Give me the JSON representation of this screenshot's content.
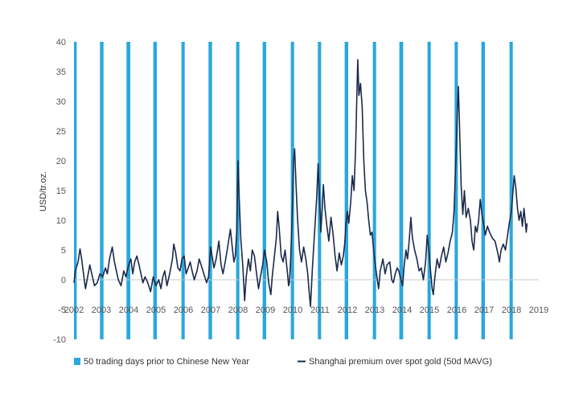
{
  "chart_data": {
    "type": "line",
    "title": "",
    "xlabel": "",
    "ylabel": "USD/tr.oz.",
    "ylim": [
      -10,
      40
    ],
    "xlim": [
      2002,
      2019
    ],
    "yticks": [
      "40",
      "35",
      "30",
      "25",
      "20",
      "15",
      "10",
      "5",
      "0",
      "-5",
      "-10"
    ],
    "xticks": [
      "2002",
      "2003",
      "2004",
      "2005",
      "2006",
      "2007",
      "2008",
      "2009",
      "2010",
      "2011",
      "2012",
      "2013",
      "2014",
      "2015",
      "2016",
      "2017",
      "2018",
      "2019"
    ],
    "grid": false,
    "legend_position": "bottom",
    "colors": {
      "bands": "#2aa7de",
      "line": "#1b2a4a"
    },
    "series": [
      {
        "name": "50 trading days prior to Chinese New Year",
        "kind": "bands",
        "bands": [
          [
            2002.0,
            2002.1
          ],
          [
            2002.95,
            2003.08
          ],
          [
            2003.92,
            2004.06
          ],
          [
            2004.9,
            2005.03
          ],
          [
            2005.93,
            2006.05
          ],
          [
            2006.92,
            2007.05
          ],
          [
            2007.93,
            2008.05
          ],
          [
            2008.9,
            2009.03
          ],
          [
            2009.93,
            2010.05
          ],
          [
            2010.92,
            2011.04
          ],
          [
            2011.9,
            2012.03
          ],
          [
            2012.93,
            2013.05
          ],
          [
            2013.9,
            2014.04
          ],
          [
            2014.93,
            2015.05
          ],
          [
            2015.92,
            2016.04
          ],
          [
            2016.9,
            2017.03
          ],
          [
            2017.93,
            2018.05
          ]
        ]
      },
      {
        "name": "Shanghai premium over spot gold (50d MAVG)",
        "kind": "line",
        "points": [
          [
            2002.0,
            -0.5
          ],
          [
            2002.05,
            1.5
          ],
          [
            2002.15,
            3.0
          ],
          [
            2002.22,
            5.2
          ],
          [
            2002.28,
            3.5
          ],
          [
            2002.35,
            1.0
          ],
          [
            2002.42,
            -1.5
          ],
          [
            2002.5,
            0.5
          ],
          [
            2002.58,
            2.5
          ],
          [
            2002.65,
            1.0
          ],
          [
            2002.75,
            -1.0
          ],
          [
            2002.85,
            -0.5
          ],
          [
            2002.95,
            1.0
          ],
          [
            2003.05,
            0.5
          ],
          [
            2003.15,
            2.0
          ],
          [
            2003.22,
            1.0
          ],
          [
            2003.3,
            3.5
          ],
          [
            2003.4,
            5.5
          ],
          [
            2003.48,
            3.0
          ],
          [
            2003.55,
            1.5
          ],
          [
            2003.62,
            0.0
          ],
          [
            2003.72,
            -1.0
          ],
          [
            2003.82,
            1.5
          ],
          [
            2003.9,
            0.5
          ],
          [
            2004.0,
            2.5
          ],
          [
            2004.08,
            3.5
          ],
          [
            2004.15,
            1.0
          ],
          [
            2004.22,
            3.0
          ],
          [
            2004.3,
            4.0
          ],
          [
            2004.38,
            2.5
          ],
          [
            2004.45,
            1.0
          ],
          [
            2004.52,
            -0.5
          ],
          [
            2004.6,
            0.5
          ],
          [
            2004.7,
            -0.5
          ],
          [
            2004.8,
            -2.0
          ],
          [
            2004.9,
            0.5
          ],
          [
            2005.0,
            -1.0
          ],
          [
            2005.1,
            0.0
          ],
          [
            2005.18,
            -1.5
          ],
          [
            2005.25,
            0.5
          ],
          [
            2005.32,
            1.5
          ],
          [
            2005.4,
            -1.0
          ],
          [
            2005.5,
            1.0
          ],
          [
            2005.6,
            3.5
          ],
          [
            2005.65,
            6.0
          ],
          [
            2005.72,
            4.5
          ],
          [
            2005.8,
            2.0
          ],
          [
            2005.88,
            1.5
          ],
          [
            2005.95,
            3.5
          ],
          [
            2006.03,
            4.0
          ],
          [
            2006.1,
            1.0
          ],
          [
            2006.18,
            2.0
          ],
          [
            2006.25,
            3.0
          ],
          [
            2006.32,
            1.5
          ],
          [
            2006.4,
            0.0
          ],
          [
            2006.5,
            1.5
          ],
          [
            2006.58,
            3.5
          ],
          [
            2006.65,
            2.5
          ],
          [
            2006.75,
            1.0
          ],
          [
            2006.85,
            -0.5
          ],
          [
            2006.92,
            0.5
          ],
          [
            2007.0,
            5.5
          ],
          [
            2007.05,
            4.0
          ],
          [
            2007.12,
            2.0
          ],
          [
            2007.2,
            3.5
          ],
          [
            2007.3,
            6.5
          ],
          [
            2007.38,
            2.5
          ],
          [
            2007.45,
            1.0
          ],
          [
            2007.55,
            3.5
          ],
          [
            2007.62,
            5.5
          ],
          [
            2007.72,
            8.5
          ],
          [
            2007.8,
            5.0
          ],
          [
            2007.85,
            3.0
          ],
          [
            2007.9,
            4.0
          ],
          [
            2007.95,
            8.0
          ],
          [
            2008.0,
            20.0
          ],
          [
            2008.04,
            14.0
          ],
          [
            2008.1,
            7.0
          ],
          [
            2008.18,
            2.0
          ],
          [
            2008.24,
            -3.5
          ],
          [
            2008.3,
            0.5
          ],
          [
            2008.38,
            3.5
          ],
          [
            2008.45,
            1.5
          ],
          [
            2008.52,
            5.0
          ],
          [
            2008.6,
            4.0
          ],
          [
            2008.68,
            1.0
          ],
          [
            2008.75,
            -1.5
          ],
          [
            2008.82,
            0.5
          ],
          [
            2008.9,
            2.5
          ],
          [
            2008.97,
            5.0
          ],
          [
            2009.05,
            3.0
          ],
          [
            2009.12,
            -0.5
          ],
          [
            2009.2,
            -2.5
          ],
          [
            2009.25,
            0.5
          ],
          [
            2009.32,
            3.5
          ],
          [
            2009.4,
            7.0
          ],
          [
            2009.45,
            11.5
          ],
          [
            2009.5,
            9.0
          ],
          [
            2009.58,
            4.0
          ],
          [
            2009.65,
            3.0
          ],
          [
            2009.72,
            5.0
          ],
          [
            2009.8,
            1.5
          ],
          [
            2009.85,
            -1.0
          ],
          [
            2009.88,
            -0.5
          ],
          [
            2009.92,
            3.0
          ],
          [
            2009.96,
            8.0
          ],
          [
            2010.0,
            14.0
          ],
          [
            2010.03,
            20.0
          ],
          [
            2010.07,
            22.0
          ],
          [
            2010.12,
            16.0
          ],
          [
            2010.18,
            10.0
          ],
          [
            2010.25,
            5.0
          ],
          [
            2010.32,
            3.0
          ],
          [
            2010.4,
            5.5
          ],
          [
            2010.48,
            3.5
          ],
          [
            2010.55,
            1.0
          ],
          [
            2010.6,
            -2.0
          ],
          [
            2010.65,
            -4.5
          ],
          [
            2010.72,
            2.0
          ],
          [
            2010.8,
            8.0
          ],
          [
            2010.88,
            14.0
          ],
          [
            2010.93,
            19.5
          ],
          [
            2010.98,
            14.0
          ],
          [
            2011.03,
            8.0
          ],
          [
            2011.08,
            12.0
          ],
          [
            2011.12,
            16.0
          ],
          [
            2011.18,
            12.0
          ],
          [
            2011.25,
            9.0
          ],
          [
            2011.32,
            6.5
          ],
          [
            2011.4,
            10.5
          ],
          [
            2011.48,
            7.5
          ],
          [
            2011.55,
            4.0
          ],
          [
            2011.62,
            1.5
          ],
          [
            2011.7,
            4.5
          ],
          [
            2011.78,
            2.5
          ],
          [
            2011.85,
            4.0
          ],
          [
            2011.9,
            6.0
          ],
          [
            2011.95,
            9.5
          ],
          [
            2012.0,
            11.5
          ],
          [
            2012.05,
            9.5
          ],
          [
            2012.12,
            13.0
          ],
          [
            2012.18,
            17.5
          ],
          [
            2012.24,
            15.0
          ],
          [
            2012.3,
            22.0
          ],
          [
            2012.34,
            30.0
          ],
          [
            2012.38,
            37.0
          ],
          [
            2012.42,
            31.0
          ],
          [
            2012.48,
            33.0
          ],
          [
            2012.54,
            29.0
          ],
          [
            2012.6,
            20.0
          ],
          [
            2012.66,
            15.0
          ],
          [
            2012.72,
            13.0
          ],
          [
            2012.78,
            10.0
          ],
          [
            2012.84,
            7.5
          ],
          [
            2012.9,
            8.0
          ],
          [
            2012.96,
            5.0
          ],
          [
            2013.02,
            2.5
          ],
          [
            2013.08,
            0.5
          ],
          [
            2013.14,
            -1.5
          ],
          [
            2013.2,
            1.5
          ],
          [
            2013.3,
            3.5
          ],
          [
            2013.38,
            1.0
          ],
          [
            2013.45,
            2.5
          ],
          [
            2013.55,
            3.0
          ],
          [
            2013.62,
            0.0
          ],
          [
            2013.68,
            -0.5
          ],
          [
            2013.75,
            1.0
          ],
          [
            2013.82,
            2.0
          ],
          [
            2013.88,
            1.5
          ],
          [
            2013.96,
            0.0
          ],
          [
            2014.02,
            -1.0
          ],
          [
            2014.08,
            2.5
          ],
          [
            2014.14,
            5.0
          ],
          [
            2014.2,
            3.5
          ],
          [
            2014.26,
            6.5
          ],
          [
            2014.32,
            10.5
          ],
          [
            2014.38,
            7.0
          ],
          [
            2014.46,
            5.0
          ],
          [
            2014.54,
            3.5
          ],
          [
            2014.62,
            1.5
          ],
          [
            2014.7,
            2.0
          ],
          [
            2014.78,
            0.0
          ],
          [
            2014.86,
            3.0
          ],
          [
            2014.92,
            7.5
          ],
          [
            2014.98,
            5.0
          ],
          [
            2015.04,
            1.5
          ],
          [
            2015.1,
            -1.5
          ],
          [
            2015.14,
            -2.5
          ],
          [
            2015.2,
            0.5
          ],
          [
            2015.28,
            3.5
          ],
          [
            2015.36,
            2.0
          ],
          [
            2015.44,
            4.0
          ],
          [
            2015.52,
            5.5
          ],
          [
            2015.6,
            3.0
          ],
          [
            2015.68,
            4.5
          ],
          [
            2015.76,
            6.5
          ],
          [
            2015.84,
            8.0
          ],
          [
            2015.9,
            11.5
          ],
          [
            2015.94,
            17.0
          ],
          [
            2015.98,
            22.0
          ],
          [
            2016.02,
            28.0
          ],
          [
            2016.06,
            32.5
          ],
          [
            2016.1,
            26.0
          ],
          [
            2016.16,
            16.0
          ],
          [
            2016.22,
            11.0
          ],
          [
            2016.28,
            15.0
          ],
          [
            2016.34,
            10.5
          ],
          [
            2016.42,
            12.0
          ],
          [
            2016.5,
            10.0
          ],
          [
            2016.56,
            6.5
          ],
          [
            2016.62,
            5.0
          ],
          [
            2016.68,
            9.0
          ],
          [
            2016.74,
            8.0
          ],
          [
            2016.8,
            10.0
          ],
          [
            2016.86,
            13.5
          ],
          [
            2016.92,
            11.0
          ],
          [
            2016.98,
            9.5
          ],
          [
            2017.04,
            7.5
          ],
          [
            2017.12,
            9.0
          ],
          [
            2017.2,
            8.0
          ],
          [
            2017.3,
            7.0
          ],
          [
            2017.4,
            6.5
          ],
          [
            2017.5,
            4.5
          ],
          [
            2017.56,
            3.0
          ],
          [
            2017.62,
            5.0
          ],
          [
            2017.7,
            6.0
          ],
          [
            2017.78,
            5.0
          ],
          [
            2017.86,
            7.5
          ],
          [
            2017.92,
            9.5
          ],
          [
            2018.0,
            11.5
          ],
          [
            2018.05,
            14.5
          ],
          [
            2018.1,
            17.5
          ],
          [
            2018.16,
            15.5
          ],
          [
            2018.22,
            12.0
          ],
          [
            2018.28,
            10.0
          ],
          [
            2018.34,
            11.5
          ],
          [
            2018.4,
            9.0
          ],
          [
            2018.46,
            12.0
          ],
          [
            2018.5,
            10.0
          ],
          [
            2018.54,
            8.0
          ],
          [
            2018.57,
            9.5
          ]
        ]
      }
    ]
  }
}
